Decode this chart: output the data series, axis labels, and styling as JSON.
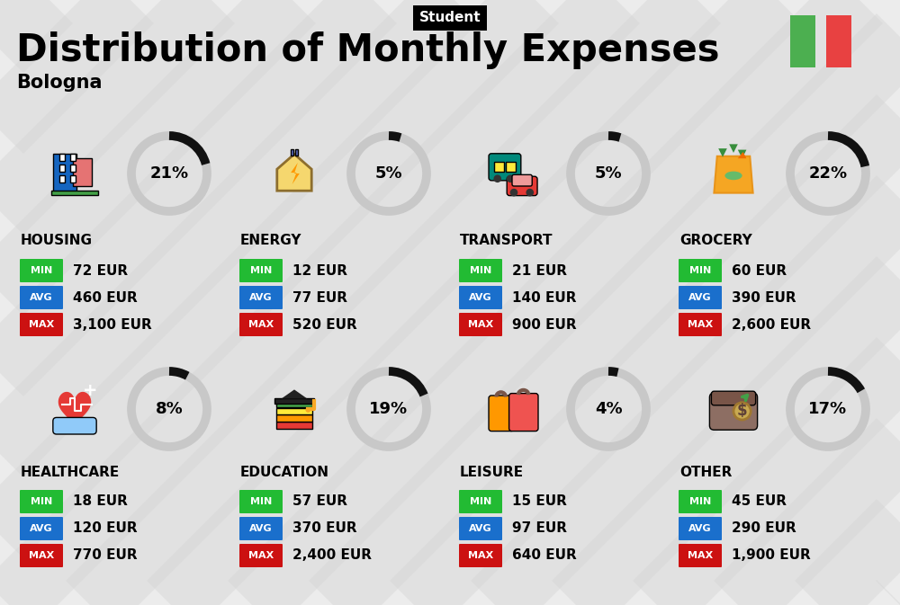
{
  "title": "Distribution of Monthly Expenses",
  "subtitle": "Student",
  "city": "Bologna",
  "bg_color": "#ececec",
  "categories": [
    {
      "name": "HOUSING",
      "pct": 21,
      "min_val": "72 EUR",
      "avg_val": "460 EUR",
      "max_val": "3,100 EUR",
      "col": 0,
      "row": 0
    },
    {
      "name": "ENERGY",
      "pct": 5,
      "min_val": "12 EUR",
      "avg_val": "77 EUR",
      "max_val": "520 EUR",
      "col": 1,
      "row": 0
    },
    {
      "name": "TRANSPORT",
      "pct": 5,
      "min_val": "21 EUR",
      "avg_val": "140 EUR",
      "max_val": "900 EUR",
      "col": 2,
      "row": 0
    },
    {
      "name": "GROCERY",
      "pct": 22,
      "min_val": "60 EUR",
      "avg_val": "390 EUR",
      "max_val": "2,600 EUR",
      "col": 3,
      "row": 0
    },
    {
      "name": "HEALTHCARE",
      "pct": 8,
      "min_val": "18 EUR",
      "avg_val": "120 EUR",
      "max_val": "770 EUR",
      "col": 0,
      "row": 1
    },
    {
      "name": "EDUCATION",
      "pct": 19,
      "min_val": "57 EUR",
      "avg_val": "370 EUR",
      "max_val": "2,400 EUR",
      "col": 1,
      "row": 1
    },
    {
      "name": "LEISURE",
      "pct": 4,
      "min_val": "15 EUR",
      "avg_val": "97 EUR",
      "max_val": "640 EUR",
      "col": 2,
      "row": 1
    },
    {
      "name": "OTHER",
      "pct": 17,
      "min_val": "45 EUR",
      "avg_val": "290 EUR",
      "max_val": "1,900 EUR",
      "col": 3,
      "row": 1
    }
  ],
  "min_color": "#22bb33",
  "avg_color": "#1a6fcc",
  "max_color": "#cc1111",
  "italy_green": "#4caf50",
  "italy_red": "#e84141",
  "stripe_color": "#d5d5d5",
  "ring_bg_color": "#c8c8c8",
  "ring_fg_color": "#111111"
}
